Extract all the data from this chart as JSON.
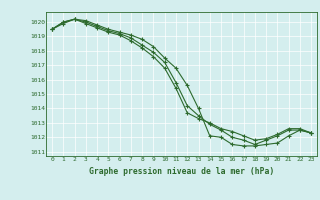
{
  "title": "Graphe pression niveau de la mer (hPa)",
  "bg_color": "#d4eeee",
  "grid_color": "#ffffff",
  "line_color": "#2d6a2d",
  "marker_color": "#2d6a2d",
  "xlim": [
    -0.5,
    23.5
  ],
  "ylim": [
    1010.7,
    1020.7
  ],
  "yticks": [
    1011,
    1012,
    1013,
    1014,
    1015,
    1016,
    1017,
    1018,
    1019,
    1020
  ],
  "xticks": [
    0,
    1,
    2,
    3,
    4,
    5,
    6,
    7,
    8,
    9,
    10,
    11,
    12,
    13,
    14,
    15,
    16,
    17,
    18,
    19,
    20,
    21,
    22,
    23
  ],
  "series": [
    [
      1019.5,
      1020.0,
      1020.2,
      1020.1,
      1019.8,
      1019.5,
      1019.3,
      1019.1,
      1018.8,
      1018.3,
      1017.5,
      1016.8,
      1015.6,
      1014.0,
      1012.1,
      1012.0,
      1011.5,
      1011.4,
      1011.4,
      1011.5,
      1011.6,
      1012.1,
      1012.5,
      1012.3
    ],
    [
      1019.5,
      1020.0,
      1020.2,
      1020.0,
      1019.7,
      1019.4,
      1019.2,
      1018.9,
      1018.4,
      1017.9,
      1017.2,
      1015.8,
      1014.2,
      1013.5,
      1012.9,
      1012.5,
      1012.0,
      1011.8,
      1011.5,
      1011.8,
      1012.1,
      1012.5,
      1012.5,
      1012.3
    ],
    [
      1019.5,
      1019.9,
      1020.2,
      1019.9,
      1019.6,
      1019.3,
      1019.1,
      1018.7,
      1018.2,
      1017.6,
      1016.8,
      1015.4,
      1013.7,
      1013.3,
      1013.0,
      1012.6,
      1012.4,
      1012.1,
      1011.8,
      1011.9,
      1012.2,
      1012.6,
      1012.6,
      1012.3
    ]
  ]
}
